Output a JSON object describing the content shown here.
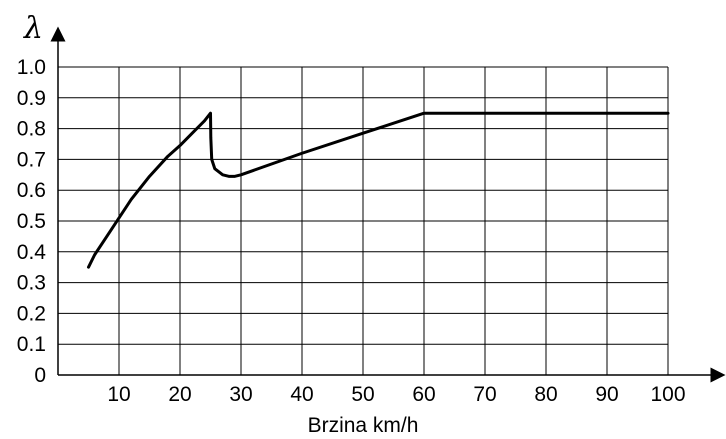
{
  "chart_data": {
    "type": "line",
    "title": "",
    "xlabel": "Brzina km/h",
    "ylabel": "λ",
    "xlim": [
      0,
      100
    ],
    "ylim": [
      0,
      1.0
    ],
    "grid": true,
    "legend": "none",
    "x_ticks": [
      10,
      20,
      30,
      40,
      50,
      60,
      70,
      80,
      90,
      100
    ],
    "y_ticks": [
      0,
      0.1,
      0.2,
      0.3,
      0.4,
      0.5,
      0.6,
      0.7,
      0.8,
      0.9,
      1.0
    ],
    "x_tick_labels": [
      "10",
      "20",
      "30",
      "40",
      "50",
      "60",
      "70",
      "80",
      "90",
      "100"
    ],
    "y_tick_labels": [
      "0",
      "0.1",
      "0.2",
      "0.3",
      "0.4",
      "0.5",
      "0.6",
      "0.7",
      "0.8",
      "0.9",
      "1.0"
    ],
    "series": [
      {
        "values": [
          [
            5,
            0.35
          ],
          [
            6,
            0.39
          ],
          [
            8,
            0.45
          ],
          [
            10,
            0.51
          ],
          [
            12,
            0.57
          ],
          [
            15,
            0.645
          ],
          [
            18,
            0.71
          ],
          [
            20,
            0.745
          ],
          [
            22,
            0.785
          ],
          [
            24,
            0.825
          ],
          [
            25,
            0.85
          ],
          [
            25.05,
            0.77
          ],
          [
            25.2,
            0.7
          ],
          [
            25.7,
            0.67
          ],
          [
            27,
            0.65
          ],
          [
            28,
            0.645
          ],
          [
            29,
            0.645
          ],
          [
            30,
            0.65
          ],
          [
            40,
            0.72
          ],
          [
            50,
            0.785
          ],
          [
            60,
            0.85
          ],
          [
            100,
            0.85
          ]
        ]
      }
    ]
  }
}
